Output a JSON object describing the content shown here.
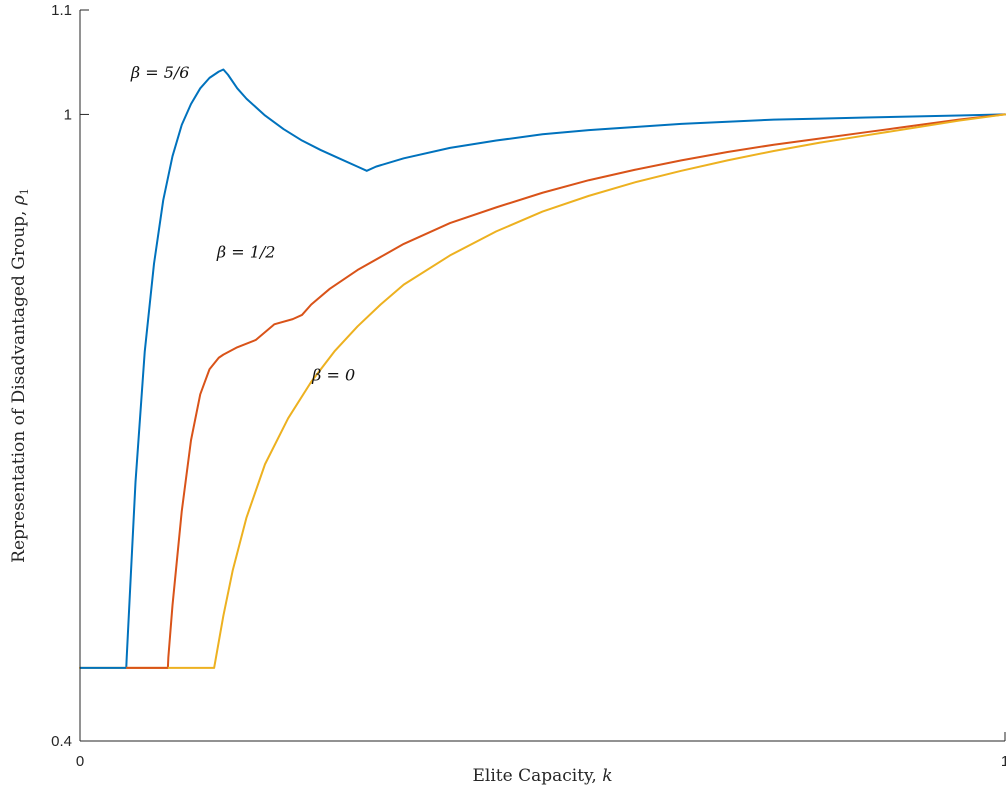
{
  "chart_data": {
    "type": "line",
    "title": "",
    "xlabel": {
      "text": "Elite Capacity, ",
      "var": "k"
    },
    "ylabel": {
      "text": "Representation of Disadvantaged Group, ",
      "var": "ρ",
      "sub": "1"
    },
    "xlim": [
      0,
      1
    ],
    "ylim": [
      0.4,
      1.1
    ],
    "xticks": [
      {
        "value": 0,
        "label": "0"
      },
      {
        "value": 1,
        "label": "1"
      }
    ],
    "yticks": [
      {
        "value": 0.4,
        "label": "0.4"
      },
      {
        "value": 1,
        "label": "1"
      },
      {
        "value": 1.1,
        "label": "1.1"
      }
    ],
    "grid": false,
    "legend": "none",
    "series": [
      {
        "label": {
          "text": "β = 5/6",
          "x": 0.055,
          "y": 1.035
        },
        "color": "#0072BD",
        "x": [
          0.05,
          0.0505,
          0.055,
          0.06,
          0.07,
          0.08,
          0.09,
          0.1,
          0.11,
          0.12,
          0.13,
          0.14,
          0.15,
          0.155,
          0.16,
          0.17,
          0.18,
          0.2,
          0.22,
          0.24,
          0.26,
          0.28,
          0.3,
          0.31,
          0.32,
          0.35,
          0.4,
          0.45,
          0.5,
          0.55,
          0.6,
          0.65,
          0.7,
          0.75,
          0.8,
          0.85,
          0.9,
          0.95,
          1.0
        ],
        "y": [
          0.47,
          0.48,
          0.56,
          0.648,
          0.773,
          0.857,
          0.918,
          0.96,
          0.99,
          1.01,
          1.025,
          1.035,
          1.041,
          1.043,
          1.038,
          1.025,
          1.015,
          0.999,
          0.986,
          0.975,
          0.966,
          0.958,
          0.95,
          0.946,
          0.95,
          0.958,
          0.968,
          0.975,
          0.981,
          0.985,
          0.988,
          0.991,
          0.993,
          0.995,
          0.996,
          0.997,
          0.998,
          0.999,
          1.0
        ]
      },
      {
        "label": {
          "text": "β = 1/2",
          "x": 0.148,
          "y": 0.863
        },
        "color": "#D95319",
        "x": [
          0.095,
          0.0955,
          0.1,
          0.11,
          0.12,
          0.13,
          0.14,
          0.15,
          0.155,
          0.17,
          0.19,
          0.21,
          0.23,
          0.24,
          0.25,
          0.27,
          0.3,
          0.35,
          0.4,
          0.45,
          0.5,
          0.55,
          0.6,
          0.65,
          0.7,
          0.75,
          0.8,
          0.85,
          0.9,
          0.95,
          1.0
        ],
        "y": [
          0.47,
          0.48,
          0.53,
          0.62,
          0.688,
          0.732,
          0.756,
          0.767,
          0.77,
          0.777,
          0.784,
          0.799,
          0.804,
          0.808,
          0.818,
          0.833,
          0.851,
          0.876,
          0.896,
          0.911,
          0.925,
          0.937,
          0.947,
          0.956,
          0.964,
          0.971,
          0.977,
          0.983,
          0.989,
          0.995,
          1.0
        ]
      },
      {
        "label": {
          "text": "β = 0",
          "x": 0.251,
          "y": 0.745
        },
        "color": "#EDB120",
        "x": [
          0.0,
          0.05,
          0.095,
          0.145,
          0.15,
          0.155,
          0.165,
          0.18,
          0.2,
          0.225,
          0.25,
          0.275,
          0.3,
          0.325,
          0.35,
          0.4,
          0.45,
          0.5,
          0.55,
          0.6,
          0.65,
          0.7,
          0.75,
          0.8,
          0.85,
          0.9,
          0.95,
          1.0
        ],
        "y": [
          0.47,
          0.47,
          0.47,
          0.47,
          0.495,
          0.52,
          0.563,
          0.614,
          0.665,
          0.709,
          0.744,
          0.773,
          0.797,
          0.818,
          0.837,
          0.865,
          0.888,
          0.907,
          0.922,
          0.935,
          0.946,
          0.956,
          0.965,
          0.973,
          0.98,
          0.987,
          0.994,
          1.0
        ]
      }
    ],
    "baseline": {
      "y": 0.47,
      "segments": [
        [
          0.0,
          0.05
        ],
        [
          0.05,
          0.095
        ]
      ]
    }
  }
}
